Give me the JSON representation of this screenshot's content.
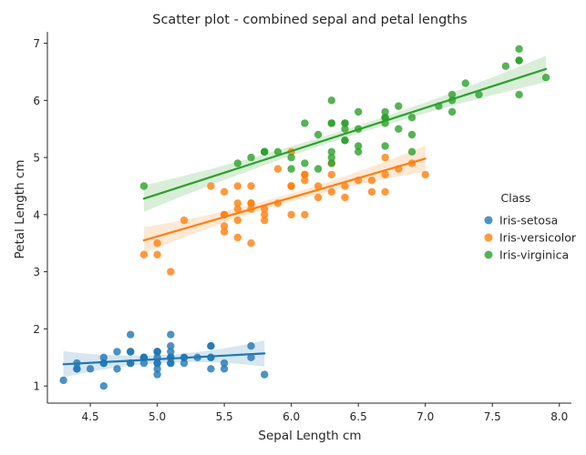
{
  "chart_data": {
    "type": "scatter",
    "title": "Scatter plot - combined sepal and petal lengths",
    "xlabel": "Sepal Length cm",
    "ylabel": "Petal Length cm",
    "xlim": [
      4.18,
      8.09
    ],
    "ylim": [
      0.7,
      7.2
    ],
    "xticks": [
      4.5,
      5.0,
      5.5,
      6.0,
      6.5,
      7.0,
      7.5,
      8.0
    ],
    "xtick_labels": [
      "4.5",
      "5.0",
      "5.5",
      "6.0",
      "6.5",
      "7.0",
      "7.5",
      "8.0"
    ],
    "yticks": [
      1,
      2,
      3,
      4,
      5,
      6,
      7
    ],
    "ytick_labels": [
      "1",
      "2",
      "3",
      "4",
      "5",
      "6",
      "7"
    ],
    "grid": false,
    "legend": {
      "title": "Class",
      "placement": "right"
    },
    "series": [
      {
        "name": "Iris-setosa",
        "color": "#1f77b4",
        "x": [
          5.1,
          4.9,
          4.7,
          4.6,
          5.0,
          5.4,
          4.6,
          5.0,
          4.4,
          4.9,
          5.4,
          4.8,
          4.8,
          4.3,
          5.8,
          5.7,
          5.4,
          5.1,
          5.7,
          5.1,
          5.4,
          5.1,
          4.6,
          5.1,
          4.8,
          5.0,
          5.0,
          5.2,
          5.2,
          4.7,
          4.8,
          5.4,
          5.2,
          5.5,
          4.9,
          5.0,
          5.5,
          4.9,
          4.4,
          5.1,
          5.0,
          4.5,
          4.4,
          5.0,
          5.1,
          4.8,
          5.1,
          4.6,
          5.3,
          5.0
        ],
        "y": [
          1.4,
          1.4,
          1.3,
          1.5,
          1.4,
          1.7,
          1.4,
          1.5,
          1.4,
          1.5,
          1.5,
          1.6,
          1.4,
          1.1,
          1.2,
          1.5,
          1.3,
          1.4,
          1.7,
          1.5,
          1.7,
          1.5,
          1.0,
          1.7,
          1.9,
          1.6,
          1.6,
          1.5,
          1.4,
          1.6,
          1.6,
          1.5,
          1.5,
          1.4,
          1.5,
          1.2,
          1.3,
          1.5,
          1.3,
          1.5,
          1.3,
          1.3,
          1.3,
          1.6,
          1.9,
          1.4,
          1.6,
          1.4,
          1.5,
          1.4
        ],
        "fit": {
          "x": [
            4.3,
            5.8
          ],
          "y": [
            1.38,
            1.57
          ]
        }
      },
      {
        "name": "Iris-versicolor",
        "color": "#ff7f0e",
        "x": [
          7.0,
          6.4,
          6.9,
          5.5,
          6.5,
          5.7,
          6.3,
          4.9,
          6.6,
          5.2,
          5.0,
          5.9,
          6.0,
          6.1,
          5.6,
          6.7,
          5.6,
          5.8,
          6.2,
          5.6,
          5.9,
          6.1,
          6.3,
          6.1,
          6.4,
          6.6,
          6.8,
          6.7,
          6.0,
          5.7,
          5.5,
          5.5,
          5.8,
          6.0,
          5.4,
          6.0,
          6.7,
          6.3,
          5.6,
          5.5,
          5.5,
          6.1,
          5.8,
          5.0,
          5.6,
          5.7,
          5.7,
          6.2,
          5.1,
          5.7
        ],
        "y": [
          4.7,
          4.5,
          4.9,
          4.0,
          4.6,
          4.5,
          4.7,
          3.3,
          4.6,
          3.9,
          3.5,
          4.2,
          4.0,
          4.7,
          3.6,
          4.4,
          4.5,
          4.1,
          4.5,
          3.9,
          4.8,
          4.0,
          4.9,
          4.7,
          4.3,
          4.4,
          4.8,
          5.0,
          4.5,
          3.5,
          3.8,
          3.7,
          3.9,
          5.1,
          4.5,
          4.5,
          4.7,
          4.4,
          4.1,
          4.0,
          4.4,
          4.6,
          4.0,
          3.3,
          4.2,
          4.2,
          4.2,
          4.3,
          3.0,
          4.1
        ],
        "fit": {
          "x": [
            4.9,
            7.0
          ],
          "y": [
            3.55,
            4.98
          ]
        }
      },
      {
        "name": "Iris-virginica",
        "color": "#2ca02c",
        "x": [
          6.3,
          5.8,
          7.1,
          6.3,
          6.5,
          7.6,
          4.9,
          7.3,
          6.7,
          7.2,
          6.5,
          6.4,
          6.8,
          5.7,
          5.8,
          6.4,
          6.5,
          7.7,
          7.7,
          6.0,
          6.9,
          5.6,
          7.7,
          6.3,
          6.7,
          7.2,
          6.2,
          6.1,
          6.4,
          7.2,
          7.4,
          7.9,
          6.4,
          6.3,
          6.1,
          7.7,
          6.3,
          6.4,
          6.0,
          6.9,
          6.7,
          6.9,
          5.8,
          6.8,
          6.7,
          6.7,
          6.3,
          6.5,
          6.2,
          5.9
        ],
        "y": [
          6.0,
          5.1,
          5.9,
          5.6,
          5.8,
          6.6,
          4.5,
          6.3,
          5.8,
          6.1,
          5.1,
          5.3,
          5.5,
          5.0,
          5.1,
          5.3,
          5.5,
          6.7,
          6.9,
          5.0,
          5.7,
          4.9,
          6.7,
          4.9,
          5.7,
          6.0,
          4.8,
          4.9,
          5.6,
          5.8,
          6.1,
          6.4,
          5.6,
          5.1,
          5.6,
          6.1,
          5.6,
          5.5,
          4.8,
          5.4,
          5.6,
          5.1,
          5.1,
          5.9,
          5.7,
          5.2,
          5.0,
          5.2,
          5.4,
          5.1
        ],
        "fit": {
          "x": [
            4.9,
            7.9
          ],
          "y": [
            4.28,
            6.55
          ]
        }
      }
    ]
  }
}
